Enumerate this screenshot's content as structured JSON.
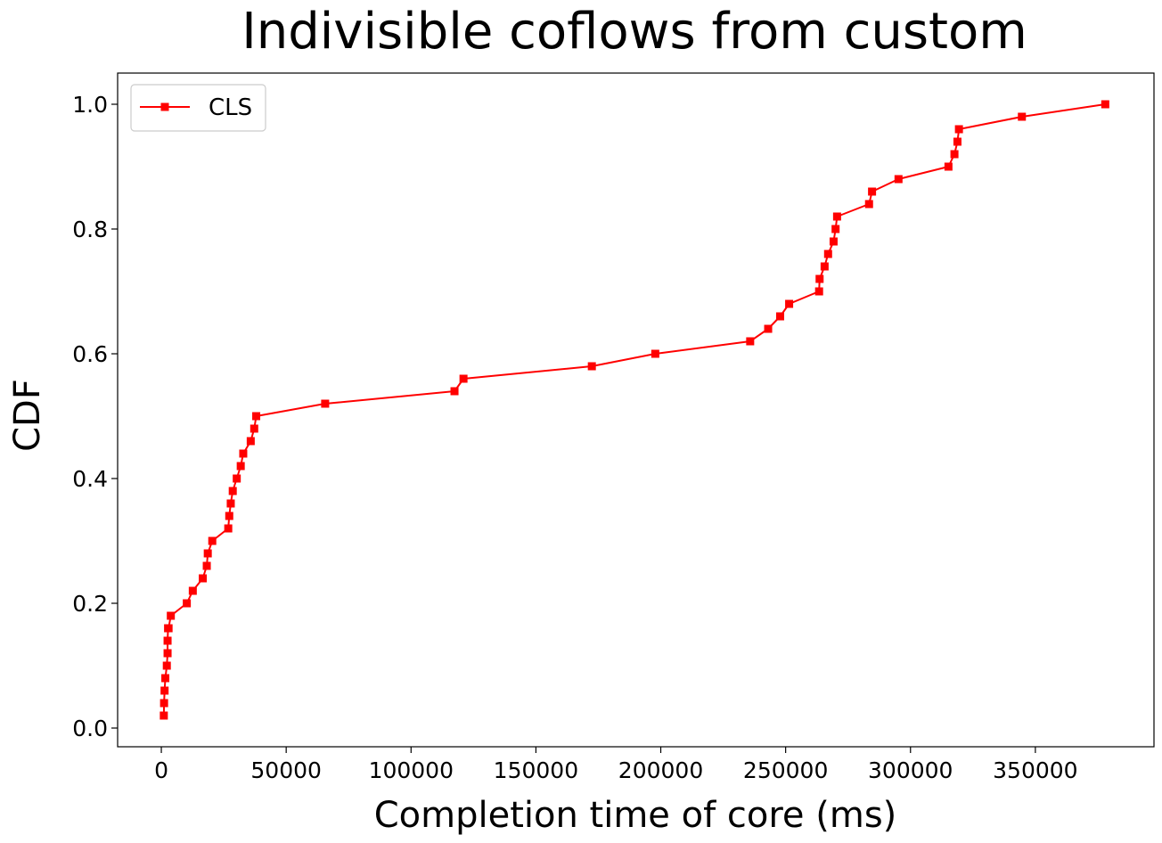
{
  "chart_data": {
    "type": "line",
    "title": "Indivisible coflows from custom",
    "xlabel": "Completion time of core (ms)",
    "ylabel": "CDF",
    "xlim": [
      -17500,
      397500
    ],
    "ylim": [
      -0.03,
      1.05
    ],
    "xticks": [
      0,
      50000,
      100000,
      150000,
      200000,
      250000,
      300000,
      350000
    ],
    "xtick_labels": [
      "0",
      "50000",
      "100000",
      "150000",
      "200000",
      "250000",
      "300000",
      "350000"
    ],
    "yticks": [
      0.0,
      0.2,
      0.4,
      0.6,
      0.8,
      1.0
    ],
    "ytick_labels": [
      "0.0",
      "0.2",
      "0.4",
      "0.6",
      "0.8",
      "1.0"
    ],
    "grid": false,
    "legend_position": "top-left",
    "series": [
      {
        "name": "CLS",
        "color": "#ff0000",
        "marker": "square",
        "x": [
          1000,
          1100,
          1300,
          1600,
          2200,
          2500,
          2500,
          2700,
          2900,
          3800,
          10200,
          12600,
          16600,
          18200,
          18600,
          20400,
          26800,
          27200,
          27800,
          28600,
          30200,
          31800,
          32800,
          35800,
          37200,
          38000,
          65600,
          117400,
          121000,
          172400,
          197800,
          235800,
          243000,
          247800,
          251400,
          263400,
          263600,
          265600,
          267000,
          269200,
          270000,
          270600,
          283400,
          284600,
          295200,
          315200,
          317600,
          318800,
          319400,
          344600,
          378000
        ],
        "y": [
          0.02,
          0.04,
          0.06,
          0.08,
          0.1,
          0.12,
          0.14,
          0.16,
          0.16,
          0.18,
          0.2,
          0.22,
          0.24,
          0.26,
          0.28,
          0.3,
          0.32,
          0.34,
          0.36,
          0.38,
          0.4,
          0.42,
          0.44,
          0.46,
          0.48,
          0.5,
          0.52,
          0.54,
          0.56,
          0.58,
          0.6,
          0.62,
          0.64,
          0.66,
          0.68,
          0.7,
          0.72,
          0.74,
          0.76,
          0.78,
          0.8,
          0.82,
          0.84,
          0.86,
          0.88,
          0.9,
          0.92,
          0.94,
          0.96,
          0.98,
          1.0
        ]
      }
    ]
  }
}
